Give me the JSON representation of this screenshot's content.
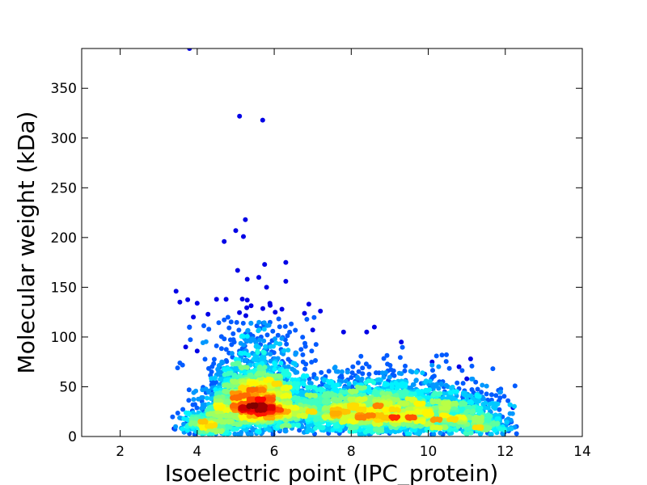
{
  "chart_data": {
    "type": "scatter",
    "title": "",
    "xlabel": "Isoelectric point (IPC_protein)",
    "ylabel": "Molecular weight (kDa)",
    "xlim": [
      1,
      14
    ],
    "ylim": [
      0,
      390
    ],
    "x_ticks": [
      2,
      4,
      6,
      8,
      10,
      12,
      14
    ],
    "y_ticks": [
      0,
      50,
      100,
      150,
      200,
      250,
      300,
      350
    ],
    "grid": false,
    "legend": "none",
    "colormap": "jet (point density)",
    "colors": {
      "low_density": "#00008b",
      "mid_density": "#00e5ff",
      "high_density": "#cc0000"
    },
    "density_peaks": [
      {
        "x": 5.5,
        "y": 30,
        "level": "highest"
      },
      {
        "x": 8.7,
        "y": 18,
        "level": "medium"
      }
    ],
    "outliers": [
      {
        "x": 3.8,
        "y": 390
      },
      {
        "x": 5.1,
        "y": 322
      },
      {
        "x": 5.7,
        "y": 318
      },
      {
        "x": 5.25,
        "y": 218
      },
      {
        "x": 5.0,
        "y": 207
      },
      {
        "x": 5.2,
        "y": 201
      },
      {
        "x": 4.7,
        "y": 196
      },
      {
        "x": 6.3,
        "y": 175
      },
      {
        "x": 5.75,
        "y": 173
      },
      {
        "x": 5.05,
        "y": 167
      },
      {
        "x": 5.6,
        "y": 160
      },
      {
        "x": 6.3,
        "y": 156
      },
      {
        "x": 5.3,
        "y": 158
      },
      {
        "x": 3.45,
        "y": 146
      },
      {
        "x": 5.8,
        "y": 150
      },
      {
        "x": 3.55,
        "y": 135
      },
      {
        "x": 4.5,
        "y": 138
      },
      {
        "x": 4.75,
        "y": 138
      },
      {
        "x": 4.0,
        "y": 134
      },
      {
        "x": 6.9,
        "y": 133
      },
      {
        "x": 6.2,
        "y": 128
      },
      {
        "x": 7.2,
        "y": 126
      },
      {
        "x": 3.9,
        "y": 120
      },
      {
        "x": 3.8,
        "y": 110
      },
      {
        "x": 8.6,
        "y": 110
      },
      {
        "x": 7.0,
        "y": 107
      },
      {
        "x": 7.8,
        "y": 105
      },
      {
        "x": 8.4,
        "y": 105
      },
      {
        "x": 9.3,
        "y": 95
      },
      {
        "x": 3.7,
        "y": 90
      },
      {
        "x": 4.0,
        "y": 86
      },
      {
        "x": 11.1,
        "y": 78
      },
      {
        "x": 10.8,
        "y": 70
      },
      {
        "x": 10.1,
        "y": 75
      },
      {
        "x": 11.0,
        "y": 58
      },
      {
        "x": 12.2,
        "y": 29
      },
      {
        "x": 3.4,
        "y": 8
      },
      {
        "x": 11.8,
        "y": 10
      }
    ],
    "clusters": [
      {
        "cx": 5.5,
        "cy": 32,
        "sx": 0.55,
        "sy": 18,
        "n": 2200
      },
      {
        "cx": 5.6,
        "cy": 60,
        "sx": 0.6,
        "sy": 30,
        "n": 500
      },
      {
        "cx": 7.2,
        "cy": 25,
        "sx": 0.9,
        "sy": 16,
        "n": 900
      },
      {
        "cx": 8.8,
        "cy": 22,
        "sx": 0.8,
        "sy": 15,
        "n": 1500
      },
      {
        "cx": 10.5,
        "cy": 20,
        "sx": 0.7,
        "sy": 13,
        "n": 800
      },
      {
        "cx": 4.3,
        "cy": 12,
        "sx": 0.35,
        "sy": 10,
        "n": 350
      },
      {
        "cx": 9.0,
        "cy": 45,
        "sx": 1.2,
        "sy": 18,
        "n": 250
      },
      {
        "cx": 11.5,
        "cy": 10,
        "sx": 0.4,
        "sy": 7,
        "n": 150
      }
    ]
  }
}
